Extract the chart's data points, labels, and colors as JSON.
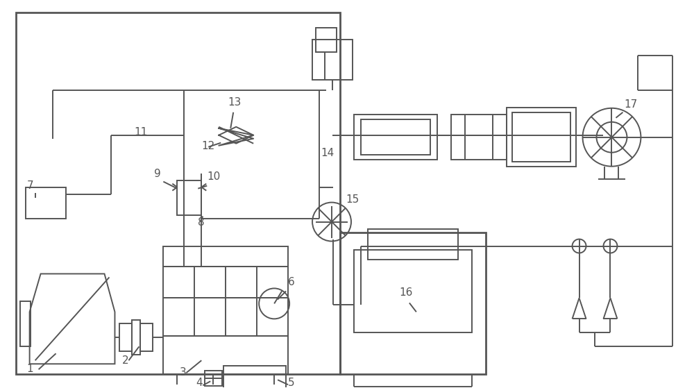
{
  "bg_color": "#ffffff",
  "line_color": "#555555",
  "lw": 1.4,
  "lw2": 2.0,
  "fig_width": 10.0,
  "fig_height": 5.59
}
